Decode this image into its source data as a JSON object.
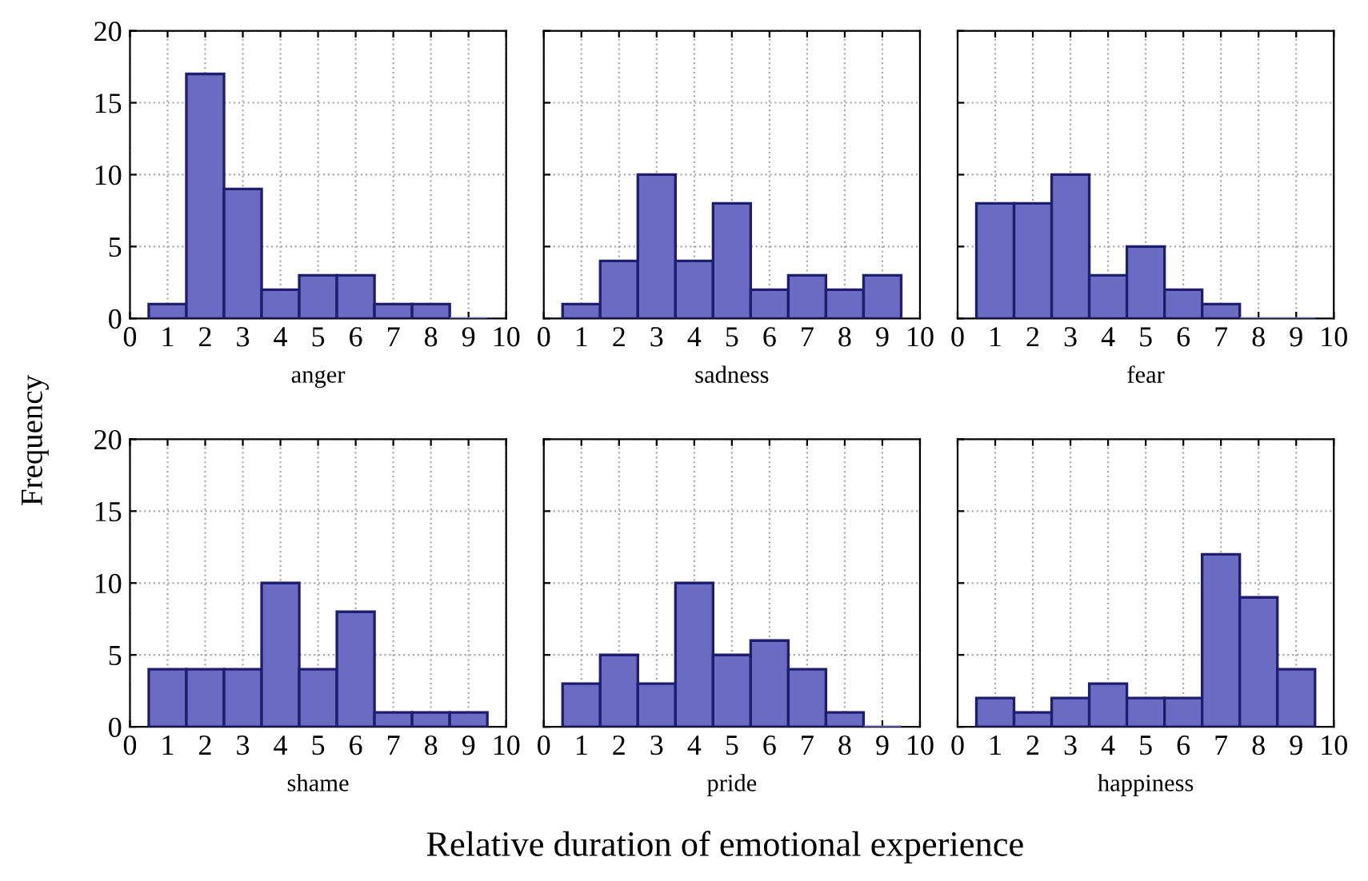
{
  "chart_data": [
    {
      "type": "histogram",
      "xlabel": "anger",
      "ylabel": "Frequency",
      "annotations": [
        "Relative duration of emotional experience"
      ],
      "bins": [
        0.5,
        1.5,
        2.5,
        3.5,
        4.5,
        5.5,
        6.5,
        7.5,
        8.5,
        9.5
      ],
      "values": [
        1,
        17,
        9,
        2,
        3,
        3,
        1,
        1,
        0
      ],
      "color": "#6b6bc4",
      "xlim": [
        0,
        10
      ],
      "ylim": [
        0,
        20
      ],
      "xticks": [
        0,
        1,
        2,
        3,
        4,
        5,
        6,
        7,
        8,
        9,
        10
      ],
      "yticks": [
        0,
        5,
        10,
        15,
        20
      ],
      "grid": true
    },
    {
      "type": "histogram",
      "xlabel": "sadness",
      "bins": [
        0.5,
        1.5,
        2.5,
        3.5,
        4.5,
        5.5,
        6.5,
        7.5,
        8.5,
        9.5
      ],
      "values": [
        1,
        4,
        10,
        4,
        8,
        2,
        3,
        2,
        3
      ],
      "color": "#6b6bc4",
      "xlim": [
        0,
        10
      ],
      "ylim": [
        0,
        20
      ],
      "xticks": [
        0,
        1,
        2,
        3,
        4,
        5,
        6,
        7,
        8,
        9,
        10
      ],
      "yticks": [
        0,
        5,
        10,
        15,
        20
      ],
      "grid": true,
      "tick_labels": "x"
    },
    {
      "type": "histogram",
      "xlabel": "fear",
      "bins": [
        0.5,
        1.5,
        2.5,
        3.5,
        4.5,
        5.5,
        6.5,
        7.5,
        8.5,
        9.5
      ],
      "values": [
        8,
        8,
        10,
        3,
        5,
        2,
        1,
        0,
        0
      ],
      "color": "#6b6bc4",
      "xlim": [
        0,
        10
      ],
      "ylim": [
        0,
        20
      ],
      "xticks": [
        0,
        1,
        2,
        3,
        4,
        5,
        6,
        7,
        8,
        9,
        10
      ],
      "yticks": [
        0,
        5,
        10,
        15,
        20
      ],
      "grid": true,
      "tick_labels": "x"
    },
    {
      "type": "histogram",
      "xlabel": "shame",
      "bins": [
        0.5,
        1.5,
        2.5,
        3.5,
        4.5,
        5.5,
        6.5,
        7.5,
        8.5,
        9.5
      ],
      "values": [
        4,
        4,
        4,
        10,
        4,
        8,
        1,
        1,
        1
      ],
      "color": "#6b6bc4",
      "xlim": [
        0,
        10
      ],
      "ylim": [
        0,
        20
      ],
      "xticks": [
        0,
        1,
        2,
        3,
        4,
        5,
        6,
        7,
        8,
        9,
        10
      ],
      "yticks": [
        0,
        5,
        10,
        15,
        20
      ],
      "grid": true
    },
    {
      "type": "histogram",
      "xlabel": "pride",
      "bins": [
        0.5,
        1.5,
        2.5,
        3.5,
        4.5,
        5.5,
        6.5,
        7.5,
        8.5,
        9.5
      ],
      "values": [
        3,
        5,
        3,
        10,
        5,
        6,
        4,
        1,
        0
      ],
      "color": "#6b6bc4",
      "xlim": [
        0,
        10
      ],
      "ylim": [
        0,
        20
      ],
      "xticks": [
        0,
        1,
        2,
        3,
        4,
        5,
        6,
        7,
        8,
        9,
        10
      ],
      "yticks": [
        0,
        5,
        10,
        15,
        20
      ],
      "grid": true,
      "tick_labels": "x"
    },
    {
      "type": "histogram",
      "xlabel": "happiness",
      "bins": [
        0.5,
        1.5,
        2.5,
        3.5,
        4.5,
        5.5,
        6.5,
        7.5,
        8.5,
        9.5
      ],
      "values": [
        2,
        1,
        2,
        3,
        2,
        2,
        12,
        9,
        4
      ],
      "color": "#6b6bc4",
      "xlim": [
        0,
        10
      ],
      "ylim": [
        0,
        20
      ],
      "xticks": [
        0,
        1,
        2,
        3,
        4,
        5,
        6,
        7,
        8,
        9,
        10
      ],
      "yticks": [
        0,
        5,
        10,
        15,
        20
      ],
      "grid": true,
      "tick_labels": "x"
    }
  ]
}
